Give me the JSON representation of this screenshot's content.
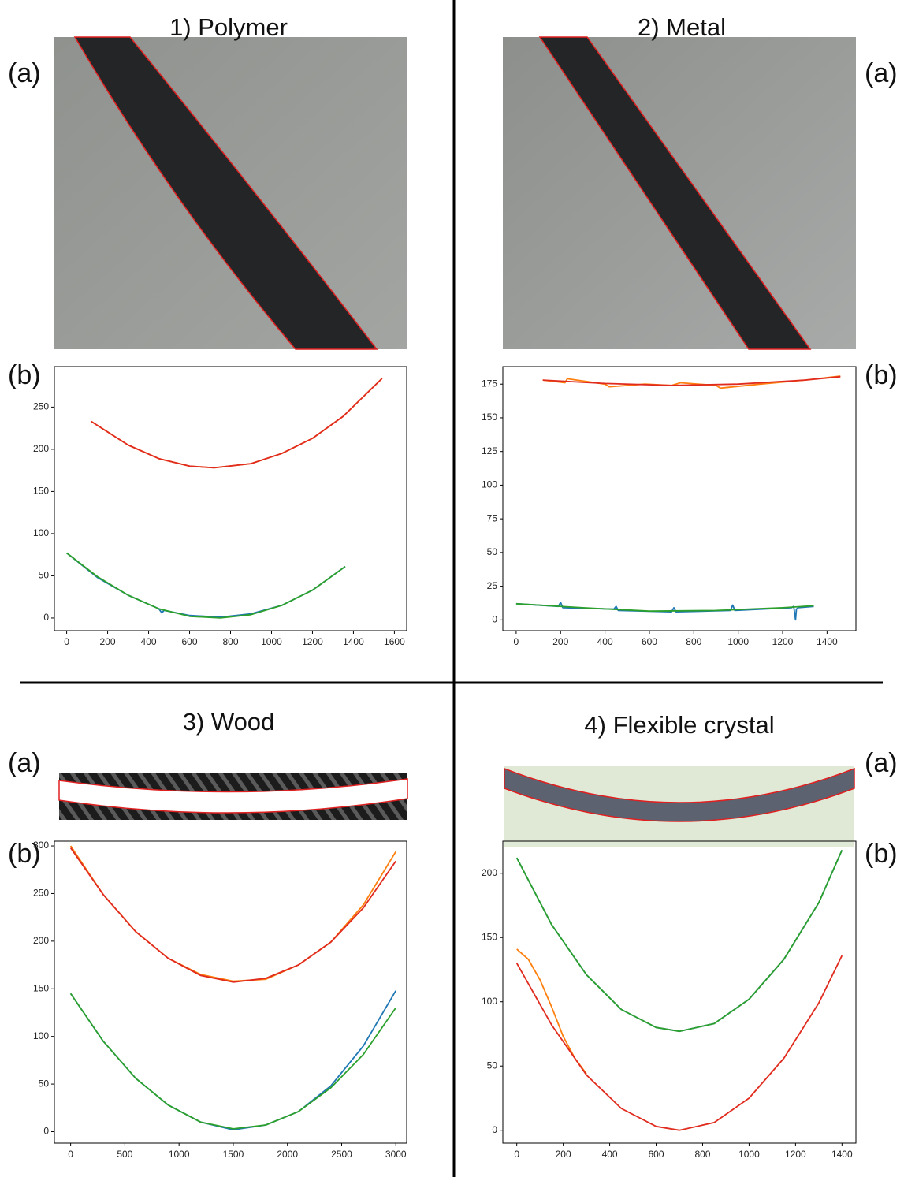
{
  "chart_data": [
    {
      "type": "line",
      "title": "1) Polymer",
      "panel_labels": [
        "(a)",
        "(b)"
      ],
      "xlim": [
        -60,
        1660
      ],
      "ylim": [
        -15,
        298
      ],
      "xticks": [
        0,
        200,
        400,
        600,
        800,
        1000,
        1200,
        1400,
        1600
      ],
      "yticks": [
        0,
        50,
        100,
        150,
        200,
        250
      ],
      "series": [
        {
          "color": "#1f77b4",
          "x": [
            0,
            150,
            300,
            450,
            465,
            475,
            600,
            750,
            900,
            1050,
            1200,
            1360
          ],
          "values": [
            77,
            48,
            27,
            11,
            6,
            9,
            3,
            1,
            5,
            15,
            33,
            61
          ]
        },
        {
          "color": "#2ca02c",
          "x": [
            0,
            150,
            300,
            450,
            600,
            750,
            900,
            1050,
            1200,
            1360
          ],
          "values": [
            77,
            49,
            27,
            11,
            2,
            0,
            4,
            15,
            33,
            61
          ]
        },
        {
          "color": "#ff7f0e",
          "x": [
            120,
            300,
            450,
            600,
            720,
            900,
            1050,
            1200,
            1350,
            1540
          ],
          "values": [
            233,
            205,
            189,
            180,
            178,
            183,
            195,
            213,
            239,
            284
          ]
        },
        {
          "color": "#e02b1e",
          "x": [
            120,
            300,
            450,
            600,
            720,
            900,
            1050,
            1200,
            1350,
            1540
          ],
          "values": [
            233,
            205,
            189,
            180,
            178,
            183,
            195,
            213,
            239,
            284
          ]
        }
      ]
    },
    {
      "type": "line",
      "title": "2) Metal",
      "panel_labels": [
        "(a)",
        "(b)"
      ],
      "xlim": [
        -60,
        1530
      ],
      "ylim": [
        -8,
        188
      ],
      "xticks": [
        0,
        200,
        400,
        600,
        800,
        1000,
        1200,
        1400
      ],
      "yticks": [
        0,
        25,
        50,
        75,
        100,
        125,
        150,
        175
      ],
      "series": [
        {
          "color": "#1f77b4",
          "x": [
            0,
            190,
            200,
            210,
            440,
            450,
            460,
            700,
            710,
            720,
            965,
            975,
            985,
            1240,
            1250,
            1258,
            1262,
            1270,
            1340
          ],
          "values": [
            12,
            10,
            13,
            9,
            8,
            10,
            7,
            6,
            9,
            6,
            7,
            11,
            7,
            9,
            10,
            0,
            8,
            9,
            10
          ]
        },
        {
          "color": "#2ca02c",
          "x": [
            0,
            300,
            600,
            900,
            1200,
            1340
          ],
          "values": [
            12,
            9,
            6.5,
            7,
            9,
            10.5
          ]
        },
        {
          "color": "#ff7f0e",
          "x": [
            120,
            220,
            230,
            400,
            420,
            580,
            700,
            740,
            900,
            920,
            1100,
            1300,
            1460
          ],
          "values": [
            178,
            176,
            179,
            175,
            173,
            175,
            174,
            176,
            174,
            172,
            175,
            178,
            181
          ]
        },
        {
          "color": "#e02b1e",
          "x": [
            120,
            400,
            700,
            1000,
            1300,
            1460
          ],
          "values": [
            178,
            175.5,
            174,
            175,
            178,
            180.5
          ]
        }
      ]
    },
    {
      "type": "line",
      "title": "3) Wood",
      "panel_labels": [
        "(a)",
        "(b)"
      ],
      "xlim": [
        -150,
        3100
      ],
      "ylim": [
        -12,
        305
      ],
      "xticks": [
        0,
        500,
        1000,
        1500,
        2000,
        2500,
        3000
      ],
      "yticks": [
        0,
        50,
        100,
        150,
        200,
        250,
        300
      ],
      "series": [
        {
          "color": "#1f77b4",
          "x": [
            0,
            300,
            600,
            900,
            1200,
            1500,
            1800,
            2100,
            2400,
            2700,
            3000
          ],
          "values": [
            145,
            95,
            56,
            28,
            10,
            2,
            7,
            21,
            48,
            90,
            148
          ]
        },
        {
          "color": "#2ca02c",
          "x": [
            0,
            300,
            600,
            900,
            1200,
            1500,
            1800,
            2100,
            2400,
            2700,
            3000
          ],
          "values": [
            145,
            95,
            56,
            28,
            10,
            3,
            7,
            21,
            46,
            81,
            130
          ]
        },
        {
          "color": "#ff7f0e",
          "x": [
            0,
            300,
            600,
            900,
            1200,
            1500,
            1800,
            2100,
            2400,
            2700,
            3000
          ],
          "values": [
            300,
            249,
            210,
            182,
            165,
            158,
            160,
            175,
            199,
            238,
            294
          ]
        },
        {
          "color": "#e02b1e",
          "x": [
            0,
            300,
            600,
            900,
            1200,
            1500,
            1800,
            2100,
            2400,
            2700,
            3000
          ],
          "values": [
            298,
            249,
            210,
            182,
            164,
            157,
            161,
            175,
            199,
            235,
            284
          ]
        }
      ]
    },
    {
      "type": "line",
      "title": "4) Flexible crystal",
      "panel_labels": [
        "(a)",
        "(b)"
      ],
      "xlim": [
        -60,
        1460
      ],
      "ylim": [
        -10,
        225
      ],
      "xticks": [
        0,
        200,
        400,
        600,
        800,
        1000,
        1200,
        1400
      ],
      "yticks": [
        0,
        50,
        100,
        150,
        200
      ],
      "series": [
        {
          "color": "#1f77b4",
          "x": [
            0,
            150,
            300,
            450,
            600,
            700,
            850,
            1000,
            1150,
            1300,
            1400
          ],
          "values": [
            212,
            160,
            121,
            94,
            80,
            77,
            83,
            102,
            133,
            177,
            218
          ]
        },
        {
          "color": "#2ca02c",
          "x": [
            0,
            150,
            300,
            450,
            600,
            700,
            850,
            1000,
            1150,
            1300,
            1400
          ],
          "values": [
            212,
            160,
            121,
            94,
            80,
            77,
            83,
            102,
            133,
            177,
            218
          ]
        },
        {
          "color": "#ff7f0e",
          "x": [
            0,
            50,
            100,
            150,
            200,
            250,
            300
          ],
          "values": [
            141,
            133,
            117,
            96,
            73,
            56,
            44
          ]
        },
        {
          "color": "#e02b1e",
          "x": [
            0,
            150,
            300,
            450,
            600,
            700,
            850,
            1000,
            1150,
            1300,
            1400
          ],
          "values": [
            130,
            82,
            43,
            17,
            3,
            0,
            6,
            25,
            56,
            99,
            136
          ]
        }
      ]
    }
  ]
}
